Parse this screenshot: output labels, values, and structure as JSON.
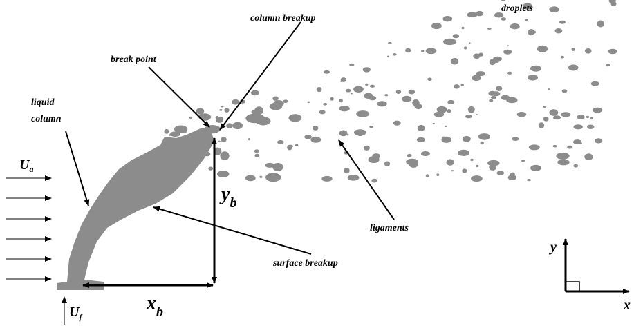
{
  "labels": {
    "droplets": "droplets",
    "column_breakup": "column breakup",
    "break_point": "break point",
    "liquid_column": [
      "liquid",
      "column"
    ],
    "ligaments": "ligaments",
    "surface_breakup": "surface breakup"
  },
  "symbols": {
    "air_velocity": {
      "symbol": "U",
      "subscript": "a"
    },
    "fuel_velocity": {
      "symbol": "U",
      "subscript": "f"
    },
    "break_height": {
      "symbol": "y",
      "subscript": "b"
    },
    "break_distance": {
      "symbol": "x",
      "subscript": "b"
    },
    "axis_y": "y",
    "axis_x": "x"
  }
}
